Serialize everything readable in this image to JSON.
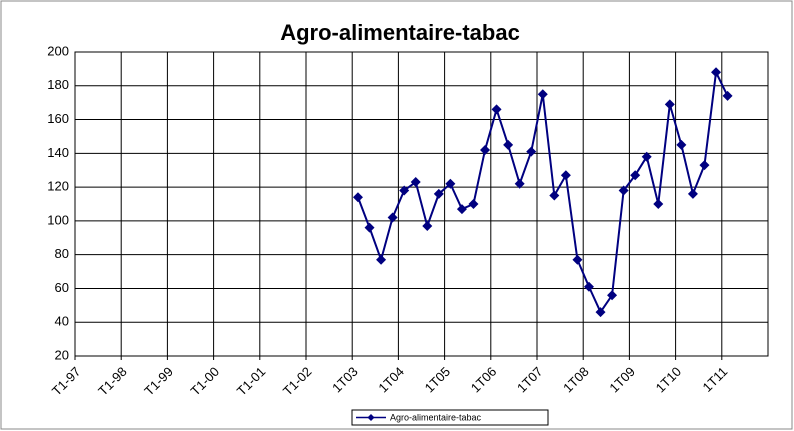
{
  "chart_data": {
    "type": "line",
    "title": "Agro-alimentaire-tabac",
    "categories": [
      "T1-97",
      null,
      null,
      null,
      "T1-98",
      null,
      null,
      null,
      "T1-99",
      null,
      null,
      null,
      "T1-00",
      null,
      null,
      null,
      "T1-01",
      null,
      null,
      null,
      "T1-02",
      null,
      null,
      null,
      "1T03",
      null,
      null,
      null,
      "1T04",
      null,
      null,
      null,
      "1T05",
      null,
      null,
      null,
      "1T06",
      null,
      null,
      null,
      "1T07",
      null,
      null,
      null,
      "1T08",
      null,
      null,
      null,
      "1T09",
      null,
      null,
      null,
      "1T10",
      null,
      null,
      null,
      "1T11",
      null,
      null,
      null
    ],
    "series": [
      {
        "name": "Agro-alimentaire-tabac",
        "color": "#000080",
        "values": [
          null,
          null,
          null,
          null,
          null,
          null,
          null,
          null,
          null,
          null,
          null,
          null,
          null,
          null,
          null,
          null,
          null,
          null,
          null,
          null,
          null,
          null,
          null,
          null,
          114,
          96,
          77,
          102,
          118,
          123,
          97,
          116,
          122,
          107,
          110,
          142,
          166,
          145,
          122,
          141,
          175,
          115,
          127,
          77,
          61,
          46,
          56,
          118,
          127,
          138,
          110,
          169,
          145,
          116,
          133,
          188,
          174,
          null,
          null,
          null
        ]
      }
    ],
    "ylim": [
      20,
      200
    ],
    "yticks": [
      20,
      40,
      60,
      80,
      100,
      120,
      140,
      160,
      180,
      200
    ],
    "grid": true
  }
}
